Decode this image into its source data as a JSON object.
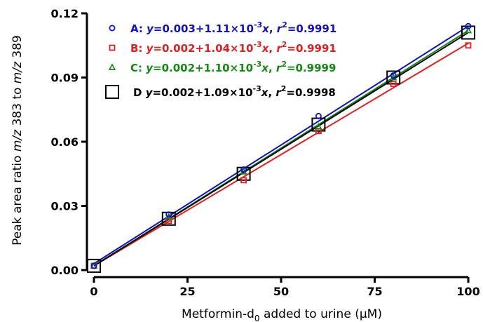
{
  "chart_data": {
    "type": "scatter",
    "xlabel": "Metformin-d",
    "xlabel_sub": "0",
    "xlabel_rest": " added to urine (μM)",
    "ylabel_parts": [
      "Peak area ratio ",
      "m/z",
      " 383 to ",
      "m/z",
      " 389"
    ],
    "xlim": [
      0,
      100
    ],
    "ylim": [
      0,
      0.12
    ],
    "x_ticks": [
      0,
      25,
      50,
      75,
      100
    ],
    "x_tick_labels": [
      "0",
      "25",
      "50",
      "75",
      "100"
    ],
    "y_ticks": [
      0,
      0.03,
      0.06,
      0.09,
      0.12
    ],
    "y_tick_labels": [
      "0.00",
      "0.03",
      "0.06",
      "0.09",
      "0.12"
    ],
    "x": [
      0,
      20,
      40,
      60,
      80,
      100
    ],
    "series": [
      {
        "name": "A",
        "marker": "circle",
        "color": "#1010cc",
        "values": [
          0.002,
          0.026,
          0.047,
          0.072,
          0.091,
          0.114
        ],
        "fit": {
          "intercept": 0.003,
          "slope": 0.00111
        },
        "legend": {
          "label": "A: ",
          "eq": "y=0.003+1.11×10",
          "exp": "-3",
          "x": "x",
          "r": ", r",
          "r_exp": "2",
          "r_val": "=0.9991"
        }
      },
      {
        "name": "B",
        "marker": "square",
        "color": "#e81c1c",
        "values": [
          0.002,
          0.023,
          0.042,
          0.065,
          0.087,
          0.105
        ],
        "fit": {
          "intercept": 0.002,
          "slope": 0.00104
        },
        "legend": {
          "label": "B: ",
          "eq": "y=0.002+1.04×10",
          "exp": "-3",
          "x": "x",
          "r": ", r",
          "r_exp": "2",
          "r_val": "=0.9991"
        }
      },
      {
        "name": "C",
        "marker": "triangle",
        "color": "#118a11",
        "values": [
          0.002,
          0.025,
          0.046,
          0.067,
          0.09,
          0.112
        ],
        "fit": {
          "intercept": 0.002,
          "slope": 0.0011
        },
        "legend": {
          "label": "C: ",
          "eq": "y=0.002+1.10×10",
          "exp": "-3",
          "x": "x",
          "r": ", r",
          "r_exp": "2",
          "r_val": "=0.9999"
        }
      },
      {
        "name": "D",
        "marker": "big-square",
        "color": "#000000",
        "values": [
          0.002,
          0.024,
          0.045,
          0.068,
          0.09,
          0.111
        ],
        "fit": {
          "intercept": 0.002,
          "slope": 0.00109
        },
        "legend": {
          "label": "D ",
          "eq": "y=0.002+1.09×10",
          "exp": "-3",
          "x": "x",
          "r": ", r",
          "r_exp": "2",
          "r_val": "=0.9998"
        }
      }
    ]
  }
}
